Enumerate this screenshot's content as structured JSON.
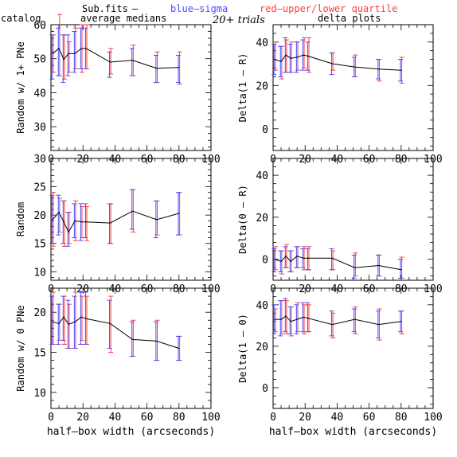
{
  "header": {
    "sub_fits": "Sub.fits",
    "dash": "—",
    "blue_sigma": "blue—sigma",
    "red_quartile": "red—upper/lower quartile",
    "catalog": "catalog",
    "average_medians": "average medians",
    "trials": "20+ trials",
    "delta_plots": "delta plots"
  },
  "colors": {
    "line": "#000000",
    "sigma": "#4a4aff",
    "quartile": "#ff3b3b",
    "axis": "#000000"
  },
  "chart_data": [
    {
      "type": "line",
      "ylabel": "Random w/ 1+ PNe",
      "xlabel": "",
      "xlim": [
        0,
        100
      ],
      "ylim": [
        23,
        60
      ],
      "xticks": [
        0,
        20,
        40,
        60,
        80,
        100
      ],
      "yticks": [
        30,
        40,
        50,
        60
      ],
      "x": [
        1,
        5,
        8,
        11,
        15,
        19,
        22,
        37,
        51,
        66,
        80
      ],
      "y": [
        51.5,
        53,
        49.8,
        51.5,
        51.5,
        53,
        53,
        49,
        49.5,
        47.2,
        47.4
      ],
      "sigma": [
        [
          44,
          57
        ],
        [
          45,
          59
        ],
        [
          43,
          57
        ],
        [
          45,
          57
        ],
        [
          46,
          58
        ],
        [
          47,
          59
        ],
        [
          47,
          59
        ],
        [
          44.5,
          52
        ],
        [
          45,
          53
        ],
        [
          43,
          51
        ],
        [
          43,
          51
        ]
      ],
      "quartile": [
        [
          46,
          57
        ],
        [
          45,
          63
        ],
        [
          44,
          57
        ],
        [
          46,
          55
        ],
        [
          47,
          59
        ],
        [
          46,
          60
        ],
        [
          47,
          60
        ],
        [
          45.5,
          53
        ],
        [
          45,
          54
        ],
        [
          43,
          52
        ],
        [
          42.5,
          52
        ]
      ]
    },
    {
      "type": "line",
      "ylabel": "Delta(1 — R)",
      "xlabel": "",
      "xlim": [
        0,
        100
      ],
      "ylim": [
        -10,
        48
      ],
      "xticks": [
        0,
        20,
        40,
        60,
        80,
        100
      ],
      "yticks": [
        0,
        20,
        40
      ],
      "x": [
        1,
        5,
        8,
        11,
        15,
        19,
        22,
        37,
        51,
        66,
        80
      ],
      "y": [
        32,
        31,
        34,
        32.5,
        33,
        34,
        33.5,
        30,
        28.5,
        27.5,
        27
      ],
      "sigma": [
        [
          25,
          39
        ],
        [
          24,
          38
        ],
        [
          26,
          42
        ],
        [
          26,
          39
        ],
        [
          26,
          40
        ],
        [
          27,
          41
        ],
        [
          27,
          40
        ],
        [
          25,
          35
        ],
        [
          24,
          33
        ],
        [
          23,
          32
        ],
        [
          22,
          32
        ]
      ],
      "quartile": [
        [
          27,
          40
        ],
        [
          23,
          38
        ],
        [
          26,
          41
        ],
        [
          26,
          40
        ],
        [
          27,
          40
        ],
        [
          28,
          42
        ],
        [
          26,
          42
        ],
        [
          27,
          35
        ],
        [
          24,
          34
        ],
        [
          22,
          32
        ],
        [
          21,
          33
        ]
      ]
    },
    {
      "type": "line",
      "ylabel": "Random",
      "xlabel": "",
      "xlim": [
        0,
        100
      ],
      "ylim": [
        8.5,
        30
      ],
      "xticks": [
        0,
        20,
        40,
        60,
        80,
        100
      ],
      "yticks": [
        10,
        15,
        20,
        25,
        30
      ],
      "x": [
        1,
        5,
        8,
        11,
        15,
        19,
        22,
        37,
        51,
        66,
        80
      ],
      "y": [
        19.2,
        20.5,
        18.8,
        17,
        19,
        18.8,
        18.8,
        18.6,
        20.7,
        19.2,
        20.3
      ],
      "sigma": [
        [
          15,
          23.5
        ],
        [
          16.5,
          23.5
        ],
        [
          15,
          22.5
        ],
        [
          14.5,
          20.5
        ],
        [
          16,
          22
        ],
        [
          15.5,
          22
        ],
        [
          16,
          22
        ],
        [
          15,
          22
        ],
        [
          17.5,
          24.5
        ],
        [
          16,
          22.5
        ],
        [
          16.5,
          24
        ]
      ],
      "quartile": [
        [
          14.5,
          24
        ],
        [
          17,
          23
        ],
        [
          14.5,
          22.5
        ],
        [
          15,
          20.5
        ],
        [
          15.5,
          22.5
        ],
        [
          16,
          21.5
        ],
        [
          15.5,
          21.5
        ],
        [
          15,
          22
        ],
        [
          17,
          24.5
        ],
        [
          16.5,
          22.5
        ],
        [
          16.5,
          24
        ]
      ]
    },
    {
      "type": "line",
      "ylabel": "Delta(0 — R)",
      "xlabel": "",
      "xlim": [
        0,
        100
      ],
      "ylim": [
        -10,
        48
      ],
      "xticks": [
        0,
        20,
        40,
        60,
        80,
        100
      ],
      "yticks": [
        0,
        20,
        40
      ],
      "x": [
        1,
        5,
        8,
        11,
        15,
        19,
        22,
        37,
        51,
        66,
        80
      ],
      "y": [
        0,
        -1,
        1.5,
        -1,
        1.5,
        0.5,
        0.5,
        0.5,
        -4,
        -3,
        -5
      ],
      "sigma": [
        [
          -6,
          5
        ],
        [
          -6,
          4
        ],
        [
          -4,
          6
        ],
        [
          -6,
          4
        ],
        [
          -4,
          6
        ],
        [
          -4,
          5
        ],
        [
          -5,
          5
        ],
        [
          -5,
          5
        ],
        [
          -9,
          2
        ],
        [
          -8,
          2
        ],
        [
          -9,
          0
        ]
      ],
      "quartile": [
        [
          -5,
          6
        ],
        [
          -7,
          4
        ],
        [
          -4,
          7
        ],
        [
          -6,
          4
        ],
        [
          -4,
          6
        ],
        [
          -5,
          6
        ],
        [
          -5,
          6
        ],
        [
          -5,
          4
        ],
        [
          -8,
          3
        ],
        [
          -8,
          2
        ],
        [
          -9,
          1
        ]
      ]
    },
    {
      "type": "line",
      "ylabel": "Random w/ 0 PNe",
      "xlabel": "half—box width (arcseconds)",
      "xlim": [
        0,
        100
      ],
      "ylim": [
        8,
        23
      ],
      "xticks": [
        0,
        20,
        40,
        60,
        80,
        100
      ],
      "yticks": [
        10,
        15,
        20
      ],
      "x": [
        1,
        5,
        8,
        11,
        15,
        19,
        22,
        37,
        51,
        66,
        80
      ],
      "y": [
        18.8,
        18.6,
        19.4,
        18.5,
        18.8,
        19.4,
        19.2,
        18.6,
        16.6,
        16.4,
        15.5
      ],
      "sigma": [
        [
          16,
          22
        ],
        [
          16,
          21
        ],
        [
          16.5,
          22
        ],
        [
          15.5,
          21.5
        ],
        [
          15.5,
          22
        ],
        [
          16,
          22.5
        ],
        [
          16,
          22.5
        ],
        [
          15.5,
          21.5
        ],
        [
          14.5,
          18.8
        ],
        [
          14,
          18.8
        ],
        [
          14,
          17
        ]
      ],
      "quartile": [
        [
          16,
          22.5
        ],
        [
          16.5,
          21
        ],
        [
          16,
          22
        ],
        [
          15.5,
          21
        ],
        [
          15.5,
          22.5
        ],
        [
          16.5,
          22
        ],
        [
          16,
          22
        ],
        [
          15,
          22
        ],
        [
          14.5,
          19
        ],
        [
          14,
          19
        ],
        [
          14,
          17
        ]
      ]
    },
    {
      "type": "line",
      "ylabel": "Delta(1 — 0)",
      "xlabel": "half—box width (arcseconds)",
      "xlim": [
        0,
        100
      ],
      "ylim": [
        -10,
        48
      ],
      "xticks": [
        0,
        20,
        40,
        60,
        80,
        100
      ],
      "yticks": [
        0,
        20,
        40
      ],
      "x": [
        1,
        5,
        8,
        11,
        15,
        19,
        22,
        37,
        51,
        66,
        80
      ],
      "y": [
        33,
        33,
        34.5,
        32,
        33,
        34,
        33.5,
        30.5,
        33,
        30.5,
        32
      ],
      "sigma": [
        [
          26,
          40
        ],
        [
          25,
          42
        ],
        [
          27,
          43
        ],
        [
          26,
          39
        ],
        [
          26,
          40
        ],
        [
          27,
          41
        ],
        [
          27,
          41
        ],
        [
          25,
          37
        ],
        [
          27,
          38
        ],
        [
          24,
          37
        ],
        [
          27,
          37
        ]
      ],
      "quartile": [
        [
          27,
          38
        ],
        [
          26,
          42
        ],
        [
          26,
          42
        ],
        [
          25,
          39
        ],
        [
          27,
          41
        ],
        [
          26,
          40
        ],
        [
          27,
          40
        ],
        [
          24,
          36
        ],
        [
          26,
          39
        ],
        [
          23,
          38
        ],
        [
          26,
          37
        ]
      ]
    }
  ]
}
